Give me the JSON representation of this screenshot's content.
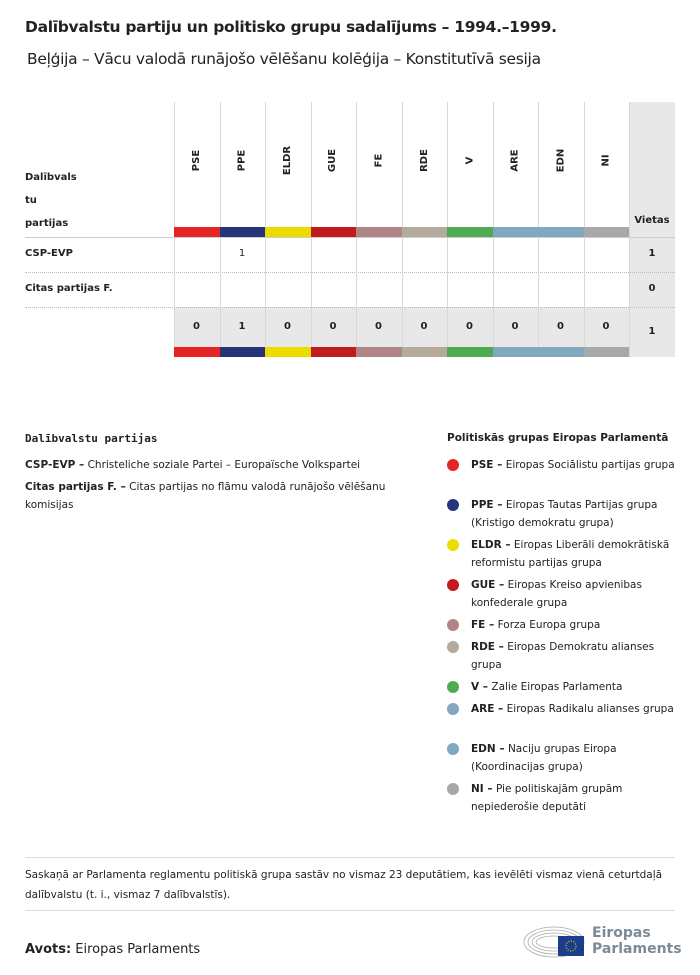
{
  "title": "Dalībvalstu partiju un politisko grupu sadalījums – 1994.–1999.",
  "subtitle": "Beļģija – Vācu valodā runājošo vēlēšanu kolēģija – Konstitutīvā sesija",
  "table": {
    "row_header": [
      "Dalībvals",
      "tu",
      "partijas"
    ],
    "seats_header": "Vietas",
    "groups": [
      {
        "code": "PSE",
        "color": "#e32526"
      },
      {
        "code": "PPE",
        "color": "#27347a"
      },
      {
        "code": "ELDR",
        "color": "#ecdc00"
      },
      {
        "code": "GUE",
        "color": "#c11b1d"
      },
      {
        "code": "FE",
        "color": "#b08587"
      },
      {
        "code": "RDE",
        "color": "#b4ab9d"
      },
      {
        "code": "V",
        "color": "#4fab52"
      },
      {
        "code": "ARE",
        "color": "#81a8bf"
      },
      {
        "code": "EDN",
        "color": "#81a8bf"
      },
      {
        "code": "NI",
        "color": "#a8a8a8"
      }
    ],
    "rows": [
      {
        "party": "CSP-EVP",
        "values": [
          "",
          "1",
          "",
          "",
          "",
          "",
          "",
          "",
          "",
          ""
        ],
        "seats": "1"
      },
      {
        "party": "Citas partijas F.",
        "values": [
          "",
          "",
          "",
          "",
          "",
          "",
          "",
          "",
          "",
          ""
        ],
        "seats": "0"
      }
    ],
    "totals": [
      "0",
      "1",
      "0",
      "0",
      "0",
      "0",
      "0",
      "0",
      "0",
      "0"
    ],
    "total_seats": "1"
  },
  "parties_legend": {
    "title": "Dalībvalstu partijas",
    "items": [
      {
        "abbr": "CSP-EVP –",
        "name": "Christeliche soziale Partei – Europaïsche Volkspartei"
      },
      {
        "abbr": "Citas partijas F. –",
        "name": "Citas partijas no flāmu valodā runājošo vēlēšanu komisijas"
      }
    ]
  },
  "groups_legend": {
    "title": "Politiskās grupas Eiropas Parlamentā",
    "items": [
      {
        "abbr": "PSE –",
        "name": "Eiropas Sociālistu partijas grupa",
        "color": "#e32526"
      },
      {
        "abbr": "PPE –",
        "name": "Eiropas Tautas Partijas grupa (Kristigo demokratu grupa)",
        "color": "#27347a"
      },
      {
        "abbr": "ELDR –",
        "name": "Eiropas Liberāli demokrātiskā reformistu partijas grupa",
        "color": "#ecdc00"
      },
      {
        "abbr": "GUE –",
        "name": "Eiropas Kreiso apvienibas konfederale grupa",
        "color": "#c11b1d"
      },
      {
        "abbr": "FE –",
        "name": "Forza Europa grupa",
        "color": "#b08587"
      },
      {
        "abbr": "RDE –",
        "name": "Eiropas Demokratu alianses grupa",
        "color": "#b4ab9d"
      },
      {
        "abbr": "V –",
        "name": "Zalie Eiropas Parlamenta",
        "color": "#4fab52"
      },
      {
        "abbr": "ARE –",
        "name": "Eiropas Radikalu alianses grupa",
        "color": "#81a8bf"
      },
      {
        "abbr": "EDN –",
        "name": "Naciju grupas Eiropa (Koordinacijas grupa)",
        "color": "#81a8bf"
      },
      {
        "abbr": "NI –",
        "name": "Pie politiskajām grupām nepiederošie deputāti",
        "color": "#a8a8a8"
      }
    ]
  },
  "footnote": "Saskaņā ar Parlamenta reglamentu politiskā grupa sastāv no vismaz 23 deputātiem, kas ievēlēti vismaz vienā ceturtdaļā dalībvalstu (t. i., vismaz 7 dalībvalstīs).",
  "source": {
    "label": "Avots:",
    "value": "Eiropas Parlaments"
  },
  "logo": {
    "line1": "Eiropas",
    "line2": "Parlaments"
  }
}
